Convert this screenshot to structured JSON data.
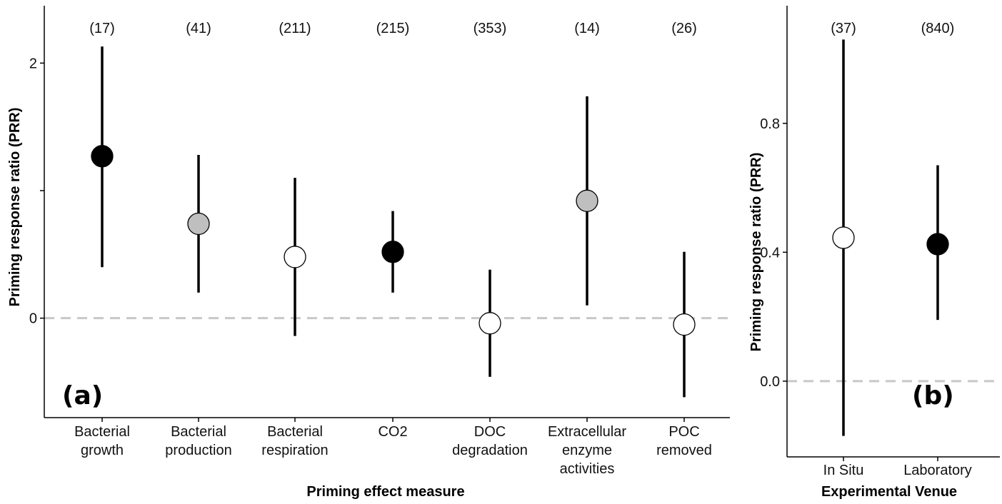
{
  "chart_data": [
    {
      "type": "scatter",
      "panel_label": "(a)",
      "xlabel": "Priming effect measure",
      "ylabel": "Priming response ratio (PRR)",
      "categories": [
        [
          "Bacterial",
          "growth"
        ],
        [
          "Bacterial",
          "production"
        ],
        [
          "Bacterial",
          "respiration"
        ],
        [
          "CO2"
        ],
        [
          "DOC",
          "degradation"
        ],
        [
          "Extracellular",
          "enzyme",
          "activities"
        ],
        [
          "POC",
          "removed"
        ]
      ],
      "n_labels": [
        "(17)",
        "(41)",
        "(211)",
        "(215)",
        "(353)",
        "(14)",
        "(26)"
      ],
      "points": [
        {
          "y": 1.27,
          "lo": 0.4,
          "hi": 2.13,
          "fill": "#000000"
        },
        {
          "y": 0.74,
          "lo": 0.2,
          "hi": 1.28,
          "fill": "#bfbfbf"
        },
        {
          "y": 0.48,
          "lo": -0.14,
          "hi": 1.1,
          "fill": "#ffffff"
        },
        {
          "y": 0.52,
          "lo": 0.2,
          "hi": 0.84,
          "fill": "#000000"
        },
        {
          "y": -0.04,
          "lo": -0.46,
          "hi": 0.38,
          "fill": "#ffffff"
        },
        {
          "y": 0.92,
          "lo": 0.1,
          "hi": 1.74,
          "fill": "#bfbfbf"
        },
        {
          "y": -0.05,
          "lo": -0.62,
          "hi": 0.52,
          "fill": "#ffffff"
        }
      ],
      "ylim": [
        -0.78,
        2.45
      ],
      "yticks": [
        0,
        1,
        2
      ],
      "ytick_labels": [
        "0",
        "",
        "2"
      ],
      "reference_line": 0
    },
    {
      "type": "scatter",
      "panel_label": "(b)",
      "xlabel": "Experimental Venue",
      "ylabel": "Priming response ratio (PRR)",
      "categories": [
        [
          "In Situ"
        ],
        [
          "Laboratory"
        ]
      ],
      "n_labels": [
        "(37)",
        "(840)"
      ],
      "points": [
        {
          "y": 0.445,
          "lo": -0.17,
          "hi": 1.06,
          "fill": "#ffffff"
        },
        {
          "y": 0.425,
          "lo": 0.19,
          "hi": 0.67,
          "fill": "#000000"
        }
      ],
      "ylim": [
        -0.235,
        1.165
      ],
      "yticks": [
        0.0,
        0.4,
        0.8
      ],
      "ytick_labels": [
        "0.0",
        "0.4",
        "0.8"
      ],
      "reference_line": 0
    }
  ],
  "colors": {
    "axis": "#000000",
    "reference_line": "#c8c8c8",
    "errorbar": "#000000"
  }
}
